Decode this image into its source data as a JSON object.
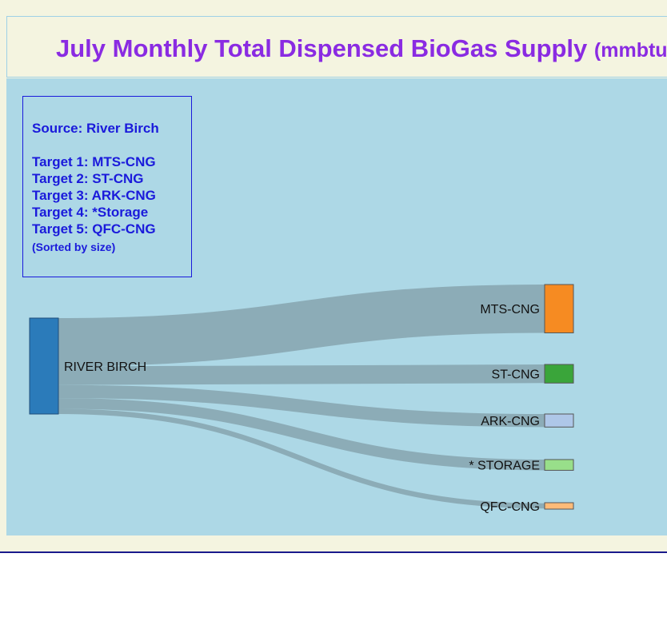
{
  "title": {
    "main": "July Monthly Total Dispensed BioGas Supply",
    "unit": "(mmbtu"
  },
  "legend": {
    "source": "Source: River Birch",
    "targets": [
      "Target 1: MTS-CNG",
      "Target 2: ST-CNG",
      "Target 3: ARK-CNG",
      "Target 4: *Storage",
      "Target 5: QFC-CNG"
    ],
    "note": "(Sorted by size)"
  },
  "chart_data": {
    "type": "sankey",
    "title": "July Monthly Total Dispensed BioGas Supply (mmbtu",
    "source": {
      "label": "RIVER BIRCH",
      "color": "#2b7bba"
    },
    "targets": [
      {
        "label": "MTS-CNG",
        "color": "#f68b22",
        "share": 0.504
      },
      {
        "label": "ST-CNG",
        "color": "#3aa53a",
        "share": 0.194
      },
      {
        "label": "ARK-CNG",
        "color": "#aec7e8",
        "share": 0.136
      },
      {
        "label": "* STORAGE",
        "color": "#98df8a",
        "share": 0.112
      },
      {
        "label": "QFC-CNG",
        "color": "#ffbb78",
        "share": 0.054
      }
    ],
    "link_color": "#8aaab4",
    "background": "#add8e6"
  }
}
